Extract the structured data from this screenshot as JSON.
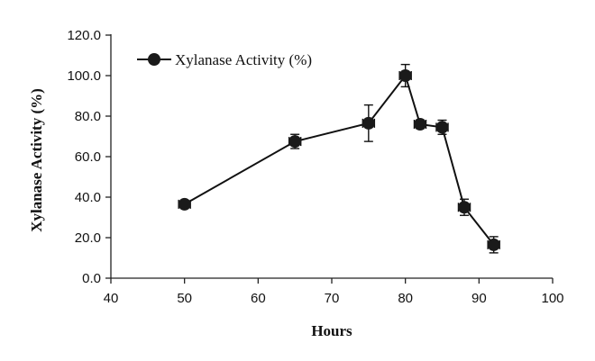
{
  "chart_data": {
    "type": "scatter",
    "title": "",
    "xlabel": "Hours",
    "ylabel": "Xylanase Activity (%)",
    "xlim": [
      40,
      100
    ],
    "ylim": [
      0,
      120
    ],
    "x_ticks": [
      40,
      50,
      60,
      70,
      80,
      90,
      100
    ],
    "y_ticks": [
      0,
      20,
      40,
      60,
      80,
      100,
      120
    ],
    "x_tick_labels": [
      "40",
      "50",
      "60",
      "70",
      "80",
      "90",
      "100"
    ],
    "y_tick_labels": [
      "0.0",
      "20.0",
      "40.0",
      "60.0",
      "80.0",
      "100.0",
      "120.0"
    ],
    "grid": false,
    "legend": {
      "position": "top-left",
      "entries": [
        "Xylanase Activity (%)"
      ]
    },
    "series": [
      {
        "name": "Xylanase Activity (%)",
        "color": "#1a1a1a",
        "marker": "circle",
        "connected": true,
        "x": [
          50,
          65,
          75,
          80,
          82,
          85,
          88,
          92
        ],
        "y": [
          36.5,
          67.5,
          76.5,
          100,
          76,
          74.5,
          35,
          16.5
        ],
        "y_err": [
          0,
          3.5,
          9,
          5.5,
          2,
          3.5,
          4,
          4
        ],
        "x_err": [
          0.8,
          0.8,
          0.8,
          0.8,
          0.8,
          0.8,
          0.8,
          0.8
        ]
      }
    ]
  }
}
